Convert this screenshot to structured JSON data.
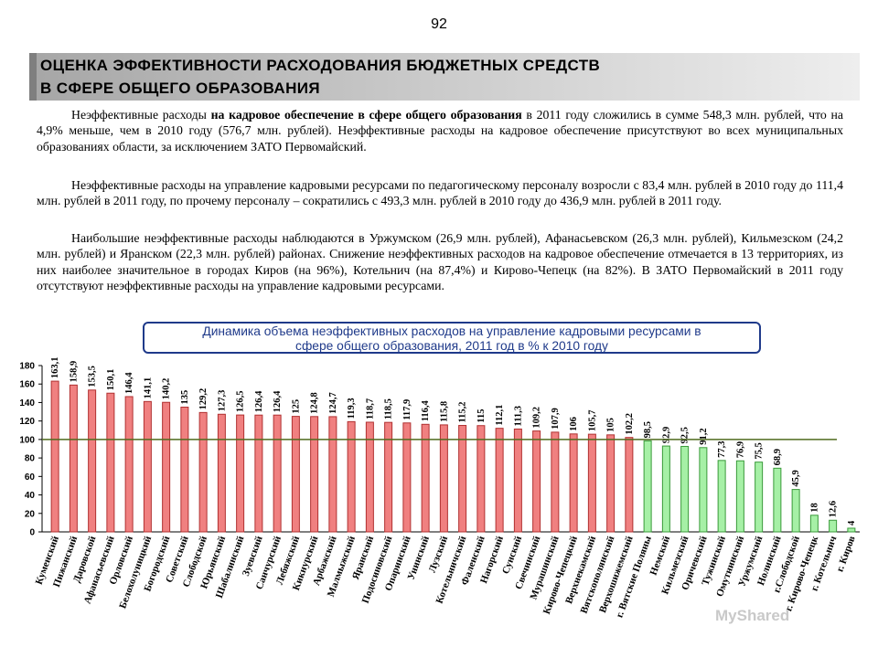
{
  "page_number": "92",
  "title": {
    "line1": "ОЦЕНКА ЭФФЕКТИВНОСТИ РАСХОДОВАНИЯ БЮДЖЕТНЫХ СРЕДСТВ",
    "line2": "В СФЕРЕ  ОБЩЕГО ОБРАЗОВАНИЯ"
  },
  "paragraphs": {
    "p1_a": "Неэффективные расходы ",
    "p1_b": "на кадровое обеспечение в сфере общего образования",
    "p1_c": " в 2011 году сложились в сумме 548,3 млн. рублей, что на 4,9% меньше, чем в 2010 году (576,7 млн. рублей). Неэффективные расходы на кадровое обеспечение присутствуют во всех муниципальных образованиях области, за исключением ЗАТО Первомайский.",
    "p2": "Неэффективные расходы на управление кадровыми ресурсами по педагогическому персоналу возросли с 83,4 млн. рублей в 2010 году до 111,4 млн. рублей в 2011 году, по прочему персоналу – сократились с 493,3 млн. рублей в 2010 году до 436,9 млн. рублей в 2011 году.",
    "p3": "Наибольшие неэффективные расходы наблюдаются в Уржумском (26,9 млн. рублей), Афанасьевском (26,3 млн. рублей), Кильмезском (24,2 млн. рублей) и Яранском (22,3 млн. рублей) районах. Снижение неэффективных расходов на кадровое обеспечение отмечается в 13 территориях, из них наиболее значительное в городах Киров (на 96%), Котельнич (на 87,4%) и Кирово-Чепецк (на 82%). В ЗАТО Первомайский в 2011 году отсутствуют неэффективные расходы на управление кадровыми ресурсами."
  },
  "callout": {
    "line1": "Динамика объема неэффективных расходов на управление кадровыми ресурсами в",
    "line2": "сфере общего образования, 2011 год в % к 2010 году"
  },
  "watermark": "MyShared",
  "colors": {
    "above_fill": "#f08080",
    "above_stroke": "#b03030",
    "below_fill": "#a6f0a6",
    "below_stroke": "#3a9a3a",
    "reference_line": "#4f6b1f",
    "callout_border": "#1f3a8a"
  },
  "chart_data": {
    "type": "bar",
    "title": "",
    "xlabel": "",
    "ylabel": "",
    "ylim": [
      0,
      180
    ],
    "yticks": [
      0,
      20,
      40,
      60,
      80,
      100,
      120,
      140,
      160,
      180
    ],
    "reference_value": 100,
    "categories": [
      "Куменский",
      "Пижанский",
      "Даровской",
      "Афанасьевский",
      "Орловский",
      "Белохолуницкий",
      "Богородский",
      "Советский",
      "Слободской",
      "Юрьянский",
      "Шабалинский",
      "Зуевский",
      "Санчурский",
      "Лебяжский",
      "Кикнурский",
      "Арбажский",
      "Малмыжский",
      "Яранский",
      "Подосиновский",
      "Опаринский",
      "Унинский",
      "Лузский",
      "Котельничский",
      "Фаленский",
      "Нагорский",
      "Сунский",
      "Свечинский",
      "Мурашинский",
      "Кирово-Чепецкий",
      "Верхнекамский",
      "Вятскополянский",
      "Верхошижемский",
      "г. Вятские Поляны",
      "Немский",
      "Кильмезский",
      "Оричевский",
      "Тужинский",
      "Омутнинский",
      "Уржумский",
      "Нолинский",
      "г.Слободской",
      "г. Кирово-Чепецк",
      "г. Котельнич",
      "г. Киров"
    ],
    "values": [
      163.1,
      158.9,
      153.5,
      150.1,
      146.4,
      141.1,
      140.2,
      135,
      129.2,
      127.3,
      126.5,
      126.4,
      126.4,
      125,
      124.8,
      124.7,
      119.3,
      118.7,
      118.5,
      117.9,
      116.4,
      115.8,
      115.2,
      115,
      112.1,
      111.3,
      109.2,
      107.9,
      106,
      105.7,
      105,
      102.2,
      98.5,
      92.9,
      92.5,
      91.2,
      77.3,
      76.9,
      75.5,
      68.9,
      45.9,
      18,
      12.6,
      4
    ],
    "value_labels": [
      "163,1",
      "158,9",
      "153,5",
      "150,1",
      "146,4",
      "141,1",
      "140,2",
      "135",
      "129,2",
      "127,3",
      "126,5",
      "126,4",
      "126,4",
      "125",
      "124,8",
      "124,7",
      "119,3",
      "118,7",
      "118,5",
      "117,9",
      "116,4",
      "115,8",
      "115,2",
      "115",
      "112,1",
      "111,3",
      "109,2",
      "107,9",
      "106",
      "105,7",
      "105",
      "102,2",
      "98,5",
      "92,9",
      "92,5",
      "91,2",
      "77,3",
      "76,9",
      "75,5",
      "68,9",
      "45,9",
      "18",
      "12,6",
      "4"
    ]
  }
}
